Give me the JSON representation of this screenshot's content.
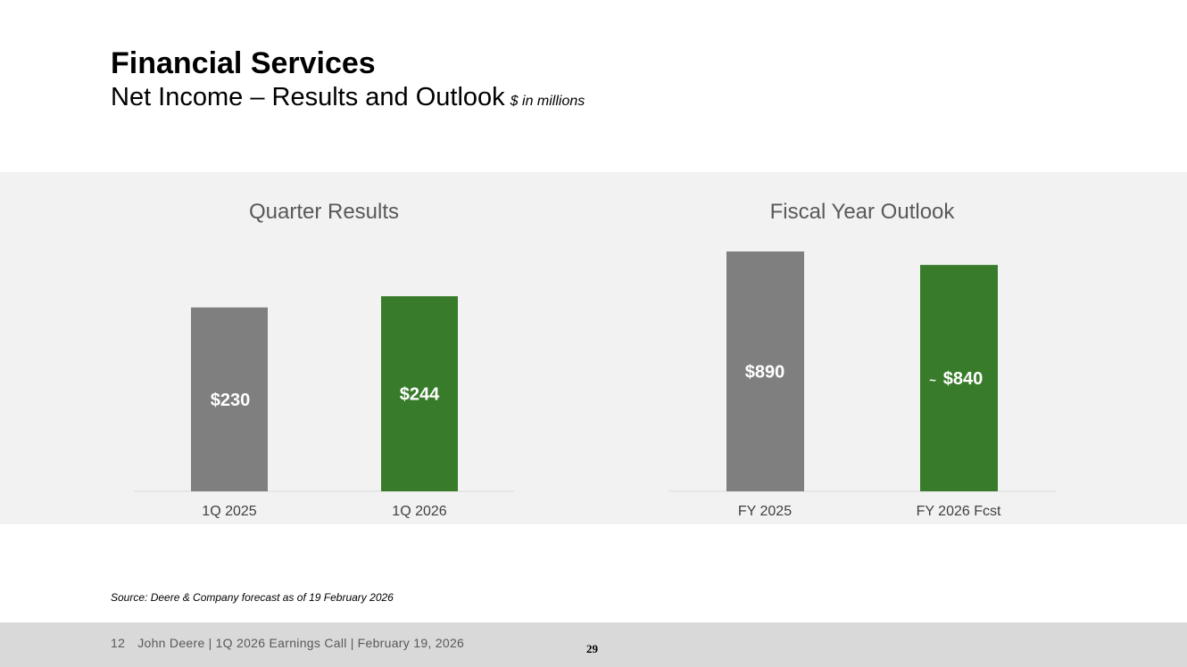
{
  "header": {
    "title": "Financial Services",
    "subtitle": "Net Income – Results and Outlook",
    "units": "$ in millions"
  },
  "colors": {
    "bar_prior": "#7f7f7f",
    "bar_current": "#387c2b",
    "panel_bg": "#f2f2f2",
    "axis": "#d9d9d9",
    "chart_title": "#595959",
    "tick_label": "#404040",
    "value_label": "#ffffff"
  },
  "chart_data": [
    {
      "type": "bar",
      "title": "Quarter Results",
      "categories": [
        "1Q 2025",
        "1Q 2026"
      ],
      "values": [
        230,
        244
      ],
      "value_labels": [
        "$230",
        "$244"
      ],
      "ylim": [
        0,
        300
      ],
      "xlabel": "",
      "ylabel": "",
      "grid": false
    },
    {
      "type": "bar",
      "title": "Fiscal Year Outlook",
      "categories": [
        "FY 2025",
        "FY 2026 Fcst"
      ],
      "values": [
        890,
        840
      ],
      "value_labels": [
        "$890",
        "$840"
      ],
      "value_prefixes": [
        "",
        "~"
      ],
      "ylim": [
        0,
        890
      ],
      "xlabel": "",
      "ylabel": "",
      "grid": false
    }
  ],
  "source": "Source: Deere & Company forecast as of 19 February 2026",
  "footer": {
    "slide_number": "12",
    "company": "John Deere",
    "event": "1Q 2026 Earnings Call",
    "date": "February 19, 2026",
    "separator": "|",
    "page_number": "29"
  }
}
